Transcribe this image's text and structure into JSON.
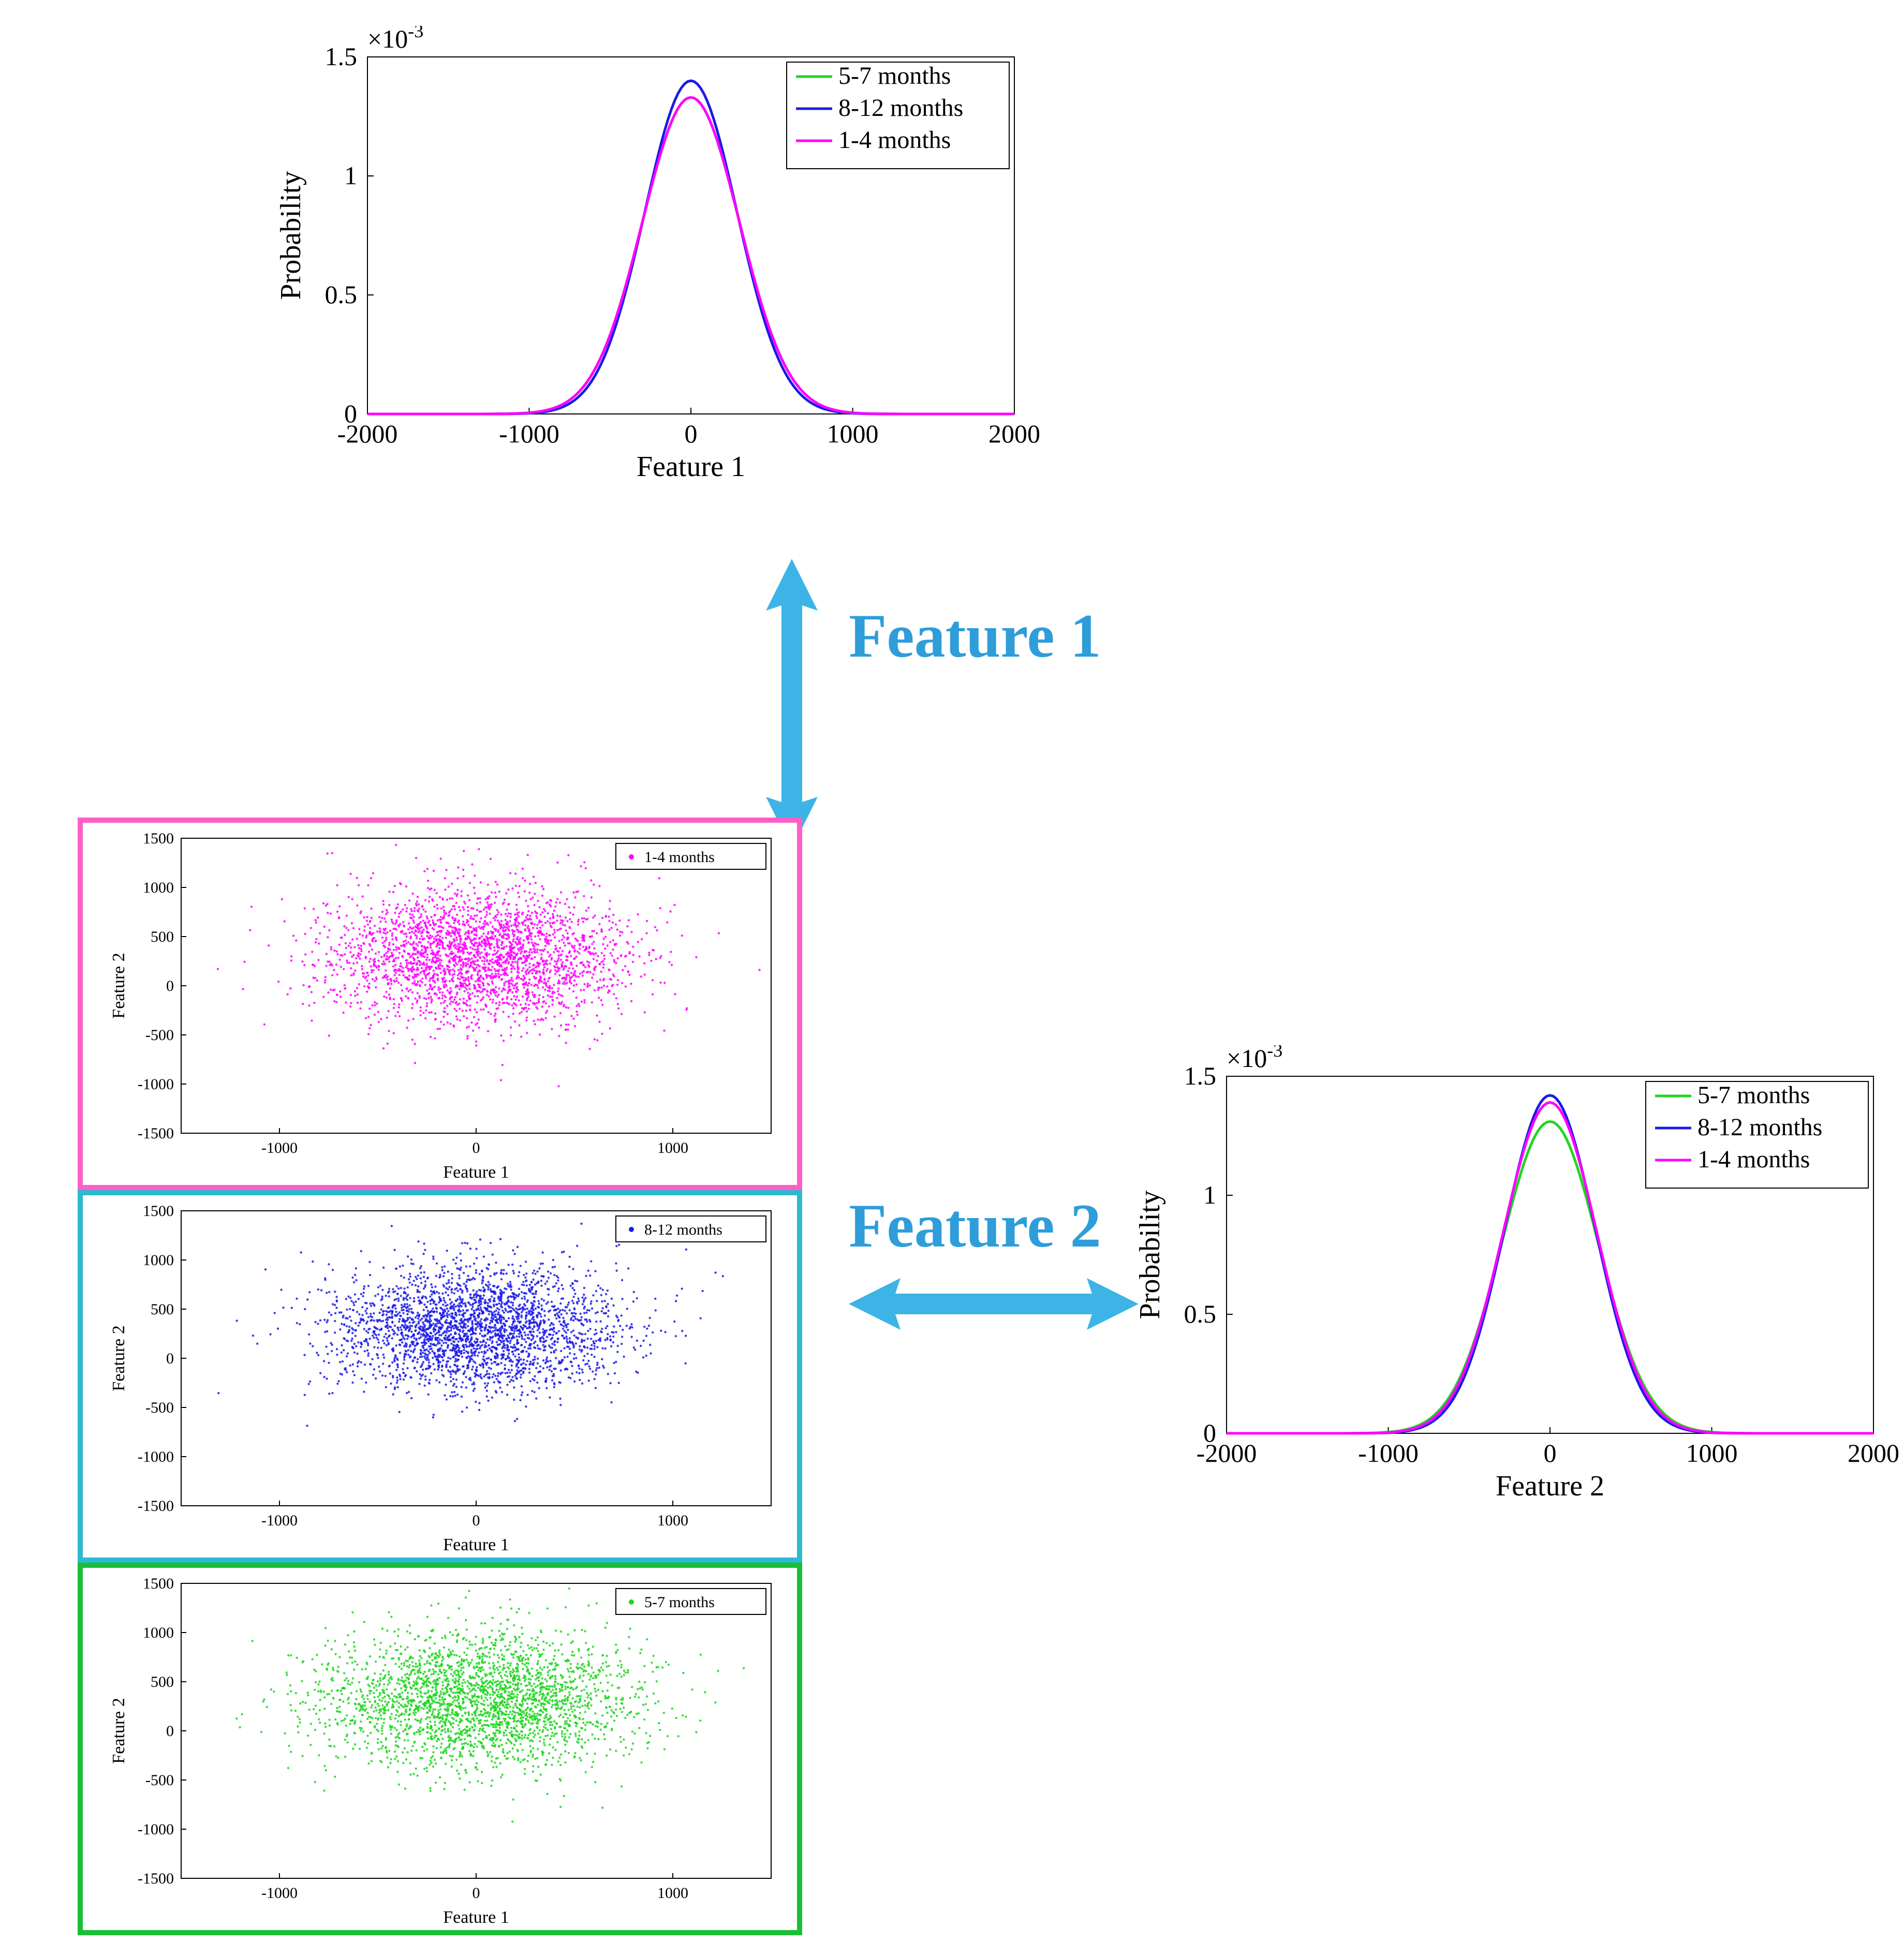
{
  "density1": {
    "ylabel": "Probability",
    "xlabel": "Feature 1",
    "exponent": "×10",
    "exponent_sup": "-3",
    "xlim": [
      -2000,
      2000
    ],
    "ylim": [
      0,
      1.5
    ],
    "xticks": [
      -2000,
      -1000,
      0,
      1000,
      2000
    ],
    "yticks": [
      0,
      0.5,
      1,
      1.5
    ],
    "legend": [
      "5-7   months",
      "8-12 months",
      "1-4   months"
    ],
    "colors": [
      "#1fd61f",
      "#1a1ae8",
      "#ff00ff"
    ],
    "series": [
      {
        "mu": 0,
        "sigma": 300,
        "peak": 1.33,
        "color": "#1fd61f"
      },
      {
        "mu": 0,
        "sigma": 285,
        "peak": 1.4,
        "color": "#1a1ae8"
      },
      {
        "mu": 0,
        "sigma": 300,
        "peak": 1.33,
        "color": "#ff00ff"
      }
    ]
  },
  "density2": {
    "ylabel": "Probability",
    "xlabel": "Feature 2",
    "exponent": "×10",
    "exponent_sup": "-3",
    "xlim": [
      -2000,
      2000
    ],
    "ylim": [
      0,
      1.5
    ],
    "xticks": [
      -2000,
      -1000,
      0,
      1000,
      2000
    ],
    "yticks": [
      0,
      0.5,
      1,
      1.5
    ],
    "legend": [
      "5-7   months",
      "8-12 months",
      "1-4   months"
    ],
    "colors": [
      "#1fd61f",
      "#1a1ae8",
      "#ff00ff"
    ],
    "series": [
      {
        "mu": 0,
        "sigma": 300,
        "peak": 1.31,
        "color": "#1fd61f"
      },
      {
        "mu": 0,
        "sigma": 280,
        "peak": 1.42,
        "color": "#1a1ae8"
      },
      {
        "mu": 0,
        "sigma": 290,
        "peak": 1.39,
        "color": "#ff00ff"
      }
    ]
  },
  "scatters": [
    {
      "legend": "1-4  months",
      "color": "#ff00ff",
      "border": "#ff5ec7",
      "n": 2800,
      "mux": 0,
      "muy": 300,
      "sx": 380,
      "sy": 330
    },
    {
      "legend": "8-12 months",
      "color": "#1a1ae8",
      "border": "#2bbad0",
      "n": 2800,
      "mux": 0,
      "muy": 300,
      "sx": 360,
      "sy": 310
    },
    {
      "legend": "5-7  months",
      "color": "#1fd61f",
      "border": "#1bbf36",
      "n": 2800,
      "mux": 0,
      "muy": 300,
      "sx": 400,
      "sy": 340
    }
  ],
  "scatter_axes": {
    "xlabel": "Feature 1",
    "ylabel": "Feature 2",
    "xlim": [
      -1500,
      1500
    ],
    "ylim": [
      -1500,
      1500
    ],
    "xticks": [
      -1000,
      0,
      1000
    ],
    "yticks": [
      -1500,
      -1000,
      -500,
      0,
      500,
      1000,
      1500
    ]
  },
  "label_feature1": "Feature 1",
  "label_feature2": "Feature 2",
  "arrow_color": "#3db4e5"
}
